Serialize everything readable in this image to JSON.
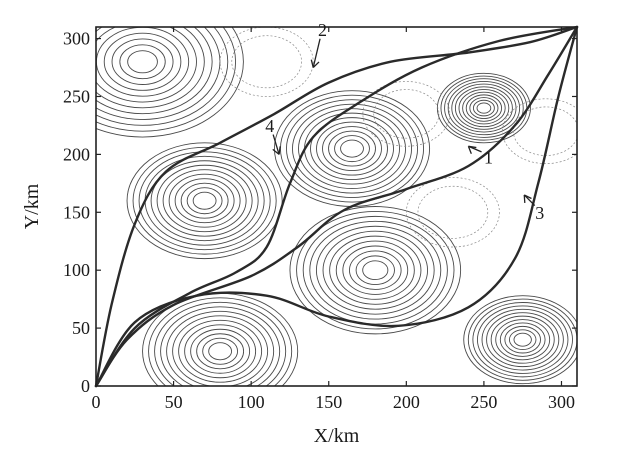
{
  "chart_data": {
    "type": "contour",
    "xlabel": "X/km",
    "ylabel": "Y/km",
    "xlim": [
      0,
      310
    ],
    "ylim": [
      0,
      310
    ],
    "xticks": [
      0,
      50,
      100,
      150,
      200,
      250,
      300
    ],
    "yticks": [
      0,
      50,
      100,
      150,
      200,
      250,
      300
    ],
    "xtick_labels": [
      "0",
      "50",
      "100",
      "150",
      "200",
      "250",
      "300"
    ],
    "ytick_labels": [
      "0",
      "50",
      "100",
      "150",
      "200",
      "250",
      "300"
    ],
    "grid": false,
    "peaks": [
      {
        "x": 30,
        "y": 280,
        "r": 65,
        "strength": "strong"
      },
      {
        "x": 70,
        "y": 160,
        "r": 50,
        "strength": "strong"
      },
      {
        "x": 165,
        "y": 205,
        "r": 50,
        "strength": "strong"
      },
      {
        "x": 180,
        "y": 100,
        "r": 55,
        "strength": "strong"
      },
      {
        "x": 250,
        "y": 240,
        "r": 30,
        "strength": "strong"
      },
      {
        "x": 80,
        "y": 30,
        "r": 50,
        "strength": "strong"
      },
      {
        "x": 275,
        "y": 40,
        "r": 38,
        "strength": "strong"
      },
      {
        "x": 110,
        "y": 280,
        "r": 30,
        "strength": "weak"
      },
      {
        "x": 200,
        "y": 235,
        "r": 28,
        "strength": "weak"
      },
      {
        "x": 230,
        "y": 150,
        "r": 30,
        "strength": "weak"
      },
      {
        "x": 290,
        "y": 220,
        "r": 28,
        "strength": "weak"
      }
    ],
    "series": [
      {
        "name": "1",
        "points": [
          [
            0,
            0
          ],
          [
            20,
            40
          ],
          [
            50,
            70
          ],
          [
            100,
            95
          ],
          [
            130,
            120
          ],
          [
            160,
            152
          ],
          [
            200,
            170
          ],
          [
            240,
            190
          ],
          [
            270,
            225
          ],
          [
            292,
            270
          ],
          [
            310,
            310
          ]
        ]
      },
      {
        "name": "2",
        "points": [
          [
            0,
            0
          ],
          [
            10,
            70
          ],
          [
            25,
            140
          ],
          [
            45,
            185
          ],
          [
            80,
            210
          ],
          [
            115,
            235
          ],
          [
            150,
            262
          ],
          [
            190,
            280
          ],
          [
            240,
            288
          ],
          [
            280,
            297
          ],
          [
            310,
            310
          ]
        ]
      },
      {
        "name": "3",
        "points": [
          [
            0,
            0
          ],
          [
            25,
            55
          ],
          [
            65,
            78
          ],
          [
            110,
            78
          ],
          [
            150,
            60
          ],
          [
            195,
            52
          ],
          [
            240,
            68
          ],
          [
            270,
            110
          ],
          [
            285,
            175
          ],
          [
            298,
            250
          ],
          [
            310,
            310
          ]
        ]
      },
      {
        "name": "4",
        "points": [
          [
            0,
            0
          ],
          [
            25,
            50
          ],
          [
            60,
            80
          ],
          [
            90,
            98
          ],
          [
            110,
            120
          ],
          [
            125,
            175
          ],
          [
            140,
            215
          ],
          [
            170,
            245
          ],
          [
            210,
            275
          ],
          [
            260,
            298
          ],
          [
            310,
            310
          ]
        ]
      }
    ],
    "annotations": [
      {
        "text": "1",
        "x": 253,
        "y": 193,
        "target": [
          240,
          207
        ]
      },
      {
        "text": "2",
        "x": 146,
        "y": 303,
        "target": [
          140,
          275
        ]
      },
      {
        "text": "3",
        "x": 286,
        "y": 145,
        "target": [
          276,
          165
        ]
      },
      {
        "text": "4",
        "x": 112,
        "y": 220,
        "target": [
          118,
          200
        ]
      }
    ]
  }
}
